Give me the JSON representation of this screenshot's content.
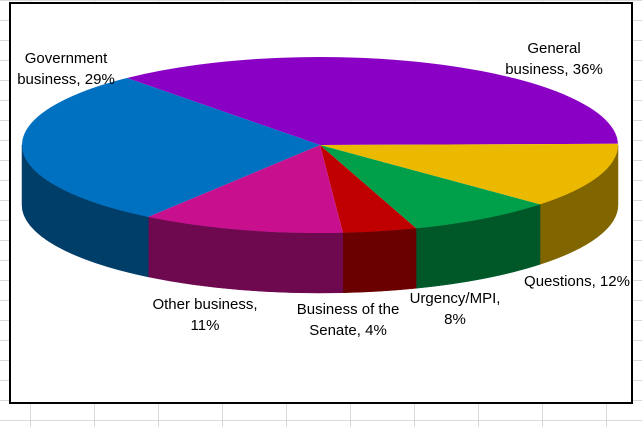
{
  "chart_data": {
    "type": "pie",
    "values": [
      36,
      12,
      8,
      4,
      11,
      29
    ],
    "value_labels": [
      "General business, 36%",
      "Questions, 12%",
      "Urgency/MPI, 8%",
      "Business of the Senate, 4%",
      "Other business, 11%",
      "Government business, 29%"
    ],
    "colors": [
      "#8a00c4",
      "#ebba00",
      "#00a04a",
      "#c00000",
      "#c8108f",
      "#0070c0"
    ]
  }
}
